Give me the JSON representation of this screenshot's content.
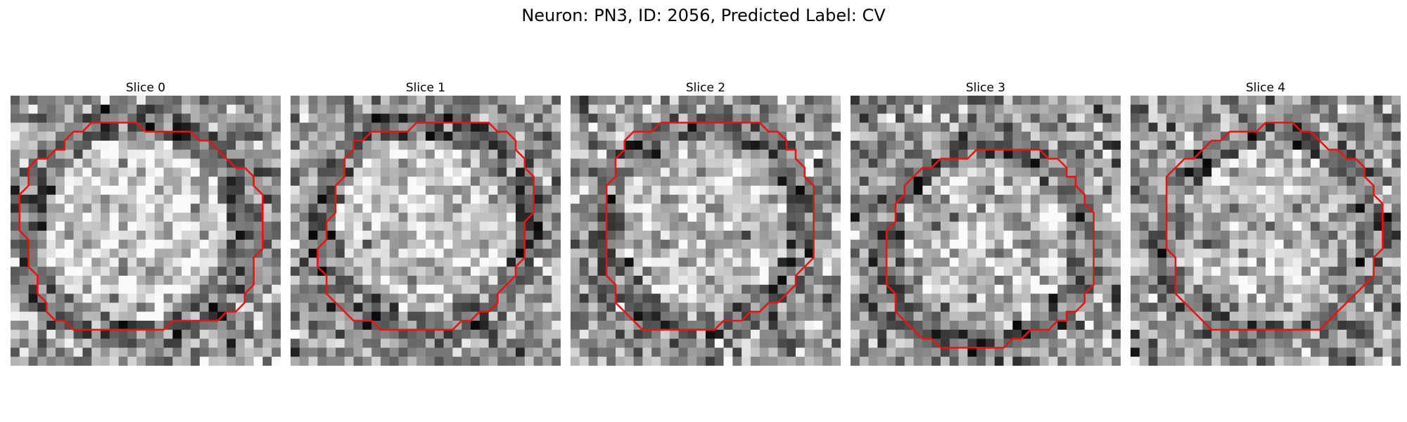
{
  "title": "Neuron: PN3, ID: 2056, Predicted Label: CV",
  "slices": [
    {
      "label": "Slice 0",
      "seed": 11,
      "center": [
        0.46,
        0.49
      ],
      "radius": 0.4,
      "contrast": 0.95,
      "contour": [
        [
          10,
          3
        ],
        [
          14,
          3
        ],
        [
          15,
          4
        ],
        [
          20,
          4
        ],
        [
          21,
          5
        ],
        [
          22,
          5
        ],
        [
          25,
          8
        ],
        [
          26,
          8
        ],
        [
          27,
          9
        ],
        [
          27,
          10
        ],
        [
          28,
          11
        ],
        [
          28,
          17
        ],
        [
          27,
          18
        ],
        [
          27,
          21
        ],
        [
          26,
          22
        ],
        [
          26,
          23
        ],
        [
          25,
          24
        ],
        [
          24,
          24
        ],
        [
          23,
          25
        ],
        [
          18,
          25
        ],
        [
          17,
          26
        ],
        [
          7,
          26
        ],
        [
          6,
          25
        ],
        [
          5,
          25
        ],
        [
          4,
          24
        ],
        [
          4,
          23
        ],
        [
          3,
          22
        ],
        [
          3,
          20
        ],
        [
          2,
          19
        ],
        [
          2,
          16
        ],
        [
          1,
          15
        ],
        [
          1,
          11
        ],
        [
          2,
          10
        ],
        [
          2,
          8
        ],
        [
          3,
          7
        ],
        [
          4,
          7
        ],
        [
          5,
          6
        ],
        [
          6,
          6
        ],
        [
          6,
          5
        ],
        [
          7,
          4
        ],
        [
          8,
          4
        ],
        [
          9,
          3
        ],
        [
          10,
          3
        ]
      ]
    },
    {
      "label": "Slice 1",
      "seed": 23,
      "center": [
        0.5,
        0.48
      ],
      "radius": 0.38,
      "contrast": 0.75,
      "contour": [
        [
          14,
          3
        ],
        [
          22,
          3
        ],
        [
          23,
          4
        ],
        [
          24,
          4
        ],
        [
          25,
          5
        ],
        [
          25,
          6
        ],
        [
          26,
          7
        ],
        [
          26,
          8
        ],
        [
          27,
          9
        ],
        [
          27,
          13
        ],
        [
          26,
          14
        ],
        [
          26,
          18
        ],
        [
          25,
          19
        ],
        [
          25,
          20
        ],
        [
          24,
          21
        ],
        [
          23,
          22
        ],
        [
          23,
          23
        ],
        [
          22,
          24
        ],
        [
          21,
          24
        ],
        [
          20,
          25
        ],
        [
          19,
          25
        ],
        [
          18,
          26
        ],
        [
          10,
          26
        ],
        [
          9,
          25
        ],
        [
          7,
          25
        ],
        [
          6,
          24
        ],
        [
          5,
          23
        ],
        [
          4,
          22
        ],
        [
          4,
          20
        ],
        [
          3,
          19
        ],
        [
          3,
          17
        ],
        [
          4,
          16
        ],
        [
          4,
          14
        ],
        [
          5,
          13
        ],
        [
          5,
          10
        ],
        [
          6,
          9
        ],
        [
          6,
          7
        ],
        [
          7,
          6
        ],
        [
          7,
          5
        ],
        [
          8,
          5
        ],
        [
          9,
          4
        ],
        [
          13,
          4
        ],
        [
          14,
          3
        ]
      ]
    },
    {
      "label": "Slice 2",
      "seed": 37,
      "center": [
        0.5,
        0.48
      ],
      "radius": 0.37,
      "contrast": 0.72,
      "contour": [
        [
          10,
          3
        ],
        [
          21,
          3
        ],
        [
          22,
          4
        ],
        [
          23,
          4
        ],
        [
          24,
          5
        ],
        [
          24,
          6
        ],
        [
          25,
          6
        ],
        [
          25,
          7
        ],
        [
          26,
          8
        ],
        [
          26,
          9
        ],
        [
          27,
          10
        ],
        [
          27,
          18
        ],
        [
          26,
          19
        ],
        [
          25,
          20
        ],
        [
          25,
          21
        ],
        [
          24,
          22
        ],
        [
          23,
          23
        ],
        [
          22,
          23
        ],
        [
          21,
          24
        ],
        [
          20,
          24
        ],
        [
          19,
          25
        ],
        [
          17,
          25
        ],
        [
          16,
          26
        ],
        [
          8,
          26
        ],
        [
          7,
          25
        ],
        [
          6,
          24
        ],
        [
          5,
          23
        ],
        [
          5,
          21
        ],
        [
          4,
          20
        ],
        [
          4,
          10
        ],
        [
          5,
          9
        ],
        [
          5,
          7
        ],
        [
          6,
          6
        ],
        [
          6,
          5
        ],
        [
          7,
          4
        ],
        [
          9,
          4
        ],
        [
          10,
          3
        ]
      ]
    },
    {
      "label": "Slice 3",
      "seed": 53,
      "center": [
        0.5,
        0.55
      ],
      "radius": 0.37,
      "contrast": 0.65,
      "contour": [
        [
          14,
          6
        ],
        [
          21,
          6
        ],
        [
          22,
          7
        ],
        [
          23,
          7
        ],
        [
          24,
          8
        ],
        [
          24,
          9
        ],
        [
          25,
          9
        ],
        [
          25,
          10
        ],
        [
          26,
          11
        ],
        [
          26,
          12
        ],
        [
          27,
          13
        ],
        [
          27,
          21
        ],
        [
          26,
          22
        ],
        [
          26,
          23
        ],
        [
          25,
          24
        ],
        [
          24,
          24
        ],
        [
          24,
          25
        ],
        [
          23,
          25
        ],
        [
          22,
          26
        ],
        [
          20,
          26
        ],
        [
          19,
          27
        ],
        [
          18,
          27
        ],
        [
          17,
          28
        ],
        [
          10,
          28
        ],
        [
          9,
          27
        ],
        [
          8,
          27
        ],
        [
          7,
          26
        ],
        [
          6,
          25
        ],
        [
          5,
          24
        ],
        [
          5,
          22
        ],
        [
          4,
          21
        ],
        [
          4,
          15
        ],
        [
          5,
          14
        ],
        [
          5,
          12
        ],
        [
          6,
          11
        ],
        [
          6,
          10
        ],
        [
          8,
          8
        ],
        [
          9,
          8
        ],
        [
          10,
          7
        ],
        [
          13,
          7
        ],
        [
          14,
          6
        ]
      ]
    },
    {
      "label": "Slice 4",
      "seed": 71,
      "center": [
        0.52,
        0.52
      ],
      "radius": 0.38,
      "contrast": 0.55,
      "contour": [
        [
          15,
          3
        ],
        [
          18,
          3
        ],
        [
          19,
          4
        ],
        [
          20,
          4
        ],
        [
          22,
          6
        ],
        [
          23,
          6
        ],
        [
          24,
          7
        ],
        [
          25,
          7
        ],
        [
          26,
          8
        ],
        [
          26,
          9
        ],
        [
          27,
          10
        ],
        [
          27,
          11
        ],
        [
          28,
          12
        ],
        [
          28,
          17
        ],
        [
          27,
          18
        ],
        [
          27,
          20
        ],
        [
          26,
          21
        ],
        [
          25,
          22
        ],
        [
          24,
          23
        ],
        [
          23,
          24
        ],
        [
          22,
          25
        ],
        [
          21,
          26
        ],
        [
          9,
          26
        ],
        [
          8,
          25
        ],
        [
          7,
          24
        ],
        [
          6,
          23
        ],
        [
          5,
          22
        ],
        [
          5,
          18
        ],
        [
          4,
          17
        ],
        [
          4,
          9
        ],
        [
          5,
          8
        ],
        [
          6,
          7
        ],
        [
          7,
          7
        ],
        [
          8,
          6
        ],
        [
          9,
          5
        ],
        [
          10,
          5
        ],
        [
          11,
          4
        ],
        [
          14,
          4
        ],
        [
          15,
          3
        ]
      ]
    }
  ],
  "colors": {
    "contour": "#ee1111",
    "background": "#ffffff"
  }
}
